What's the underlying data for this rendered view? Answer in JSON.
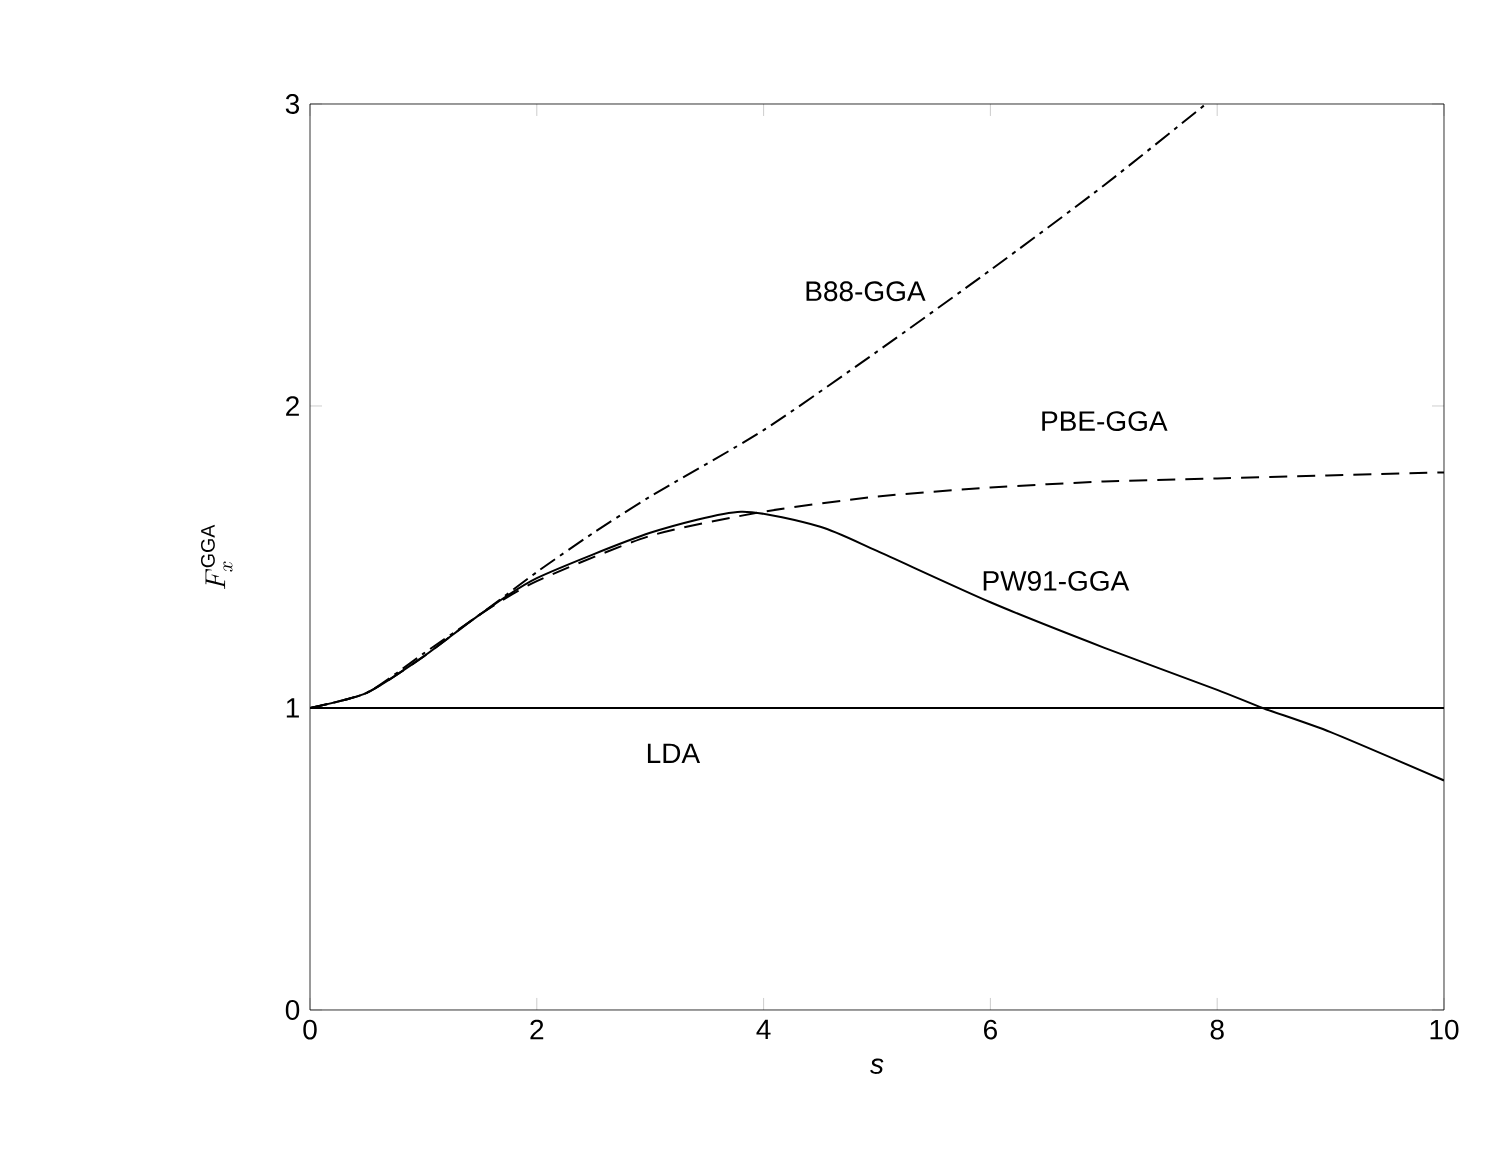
{
  "chart_data": {
    "type": "line",
    "xlabel": "s",
    "ylabel": "F_x^{\\mathrm{GGA}}",
    "xlim": [
      0,
      10
    ],
    "ylim": [
      0,
      3
    ],
    "xticks": [
      0,
      2,
      4,
      6,
      8,
      10
    ],
    "yticks": [
      0,
      1,
      2,
      3
    ],
    "grid": false,
    "legend": false,
    "marker": "none",
    "series": [
      {
        "name": "B88-GGA",
        "color": "#000000",
        "line_style": "dashdot",
        "x": [
          0,
          0.5,
          1,
          1.5,
          2,
          2.5,
          3,
          4,
          5,
          6,
          7,
          7.9
        ],
        "values": [
          1,
          1.05,
          1.18,
          1.31,
          1.45,
          1.58,
          1.7,
          1.92,
          2.18,
          2.45,
          2.73,
          3
        ]
      },
      {
        "name": "PBE-GGA",
        "color": "#000000",
        "line_style": "dashed",
        "x": [
          0,
          0.5,
          1,
          1.5,
          2,
          3,
          4,
          5,
          6,
          7,
          8,
          10
        ],
        "values": [
          1,
          1.05,
          1.17,
          1.31,
          1.42,
          1.57,
          1.65,
          1.7,
          1.73,
          1.75,
          1.76,
          1.78
        ]
      },
      {
        "name": "PW91-GGA",
        "color": "#000000",
        "line_style": "solid",
        "x": [
          0,
          0.5,
          1,
          1.5,
          2,
          3,
          3.8,
          4.5,
          5,
          6,
          7,
          8,
          8.4,
          9,
          10
        ],
        "values": [
          1,
          1.05,
          1.17,
          1.31,
          1.43,
          1.58,
          1.65,
          1.6,
          1.52,
          1.35,
          1.2,
          1.06,
          1,
          0.92,
          0.76
        ]
      },
      {
        "name": "LDA",
        "color": "#000000",
        "line_style": "solid",
        "x": [
          0,
          10
        ],
        "values": [
          1,
          1
        ]
      }
    ]
  }
}
